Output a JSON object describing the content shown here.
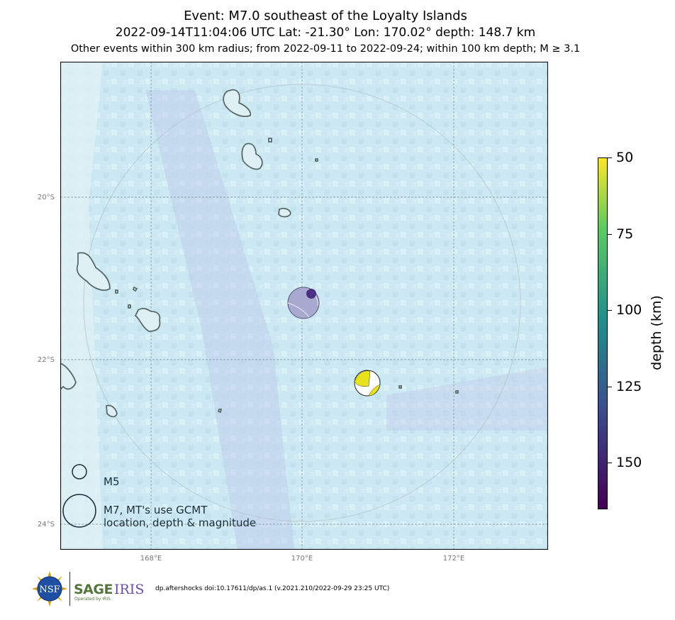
{
  "title": {
    "line1": "Event: M7.0 southeast of the Loyalty Islands",
    "line2": "2022-09-14T11:04:06 UTC Lat: -21.30° Lon: 170.02° depth: 148.7 km",
    "line3": "Other events within 300 km radius; from 2022-09-11 to 2022-09-24; within 100 km depth; M ≥ 3.1"
  },
  "map": {
    "lat_labels": [
      "20°S",
      "22°S",
      "24°S"
    ],
    "lon_labels": [
      "168°E",
      "170°E",
      "172°E"
    ],
    "mainshock": {
      "lat": -21.3,
      "lon": 170.02,
      "depth_km": 148.7,
      "magnitude": 7.0
    },
    "aftershock": {
      "lat": -22.3,
      "lon": 170.85,
      "depth_km": 50,
      "magnitude": 5.5
    },
    "colors": {
      "ocean": "#c9e7f2",
      "land": "#e8f2f4",
      "coast": "#5a6a6a",
      "mainshock": "#a9a9cf",
      "aftershock": "#e7e21c"
    }
  },
  "colorbar": {
    "label": "depth (km)",
    "ticks": [
      "50",
      "75",
      "100",
      "125",
      "150"
    ],
    "range": [
      50,
      165
    ]
  },
  "legend": {
    "m5": "M5",
    "m7_line1": "M7, MT's use GCMT",
    "m7_line2": "location, depth & magnitude"
  },
  "footer": {
    "citation": "dp.aftershocks doi:10.17611/dp/as.1 (v.2021.210/2022-09-29 23:25 UTC)",
    "sage": "SAGE",
    "iris": "IRIS",
    "operated_by": "Operated by IRIS",
    "nsf": "NSF"
  }
}
